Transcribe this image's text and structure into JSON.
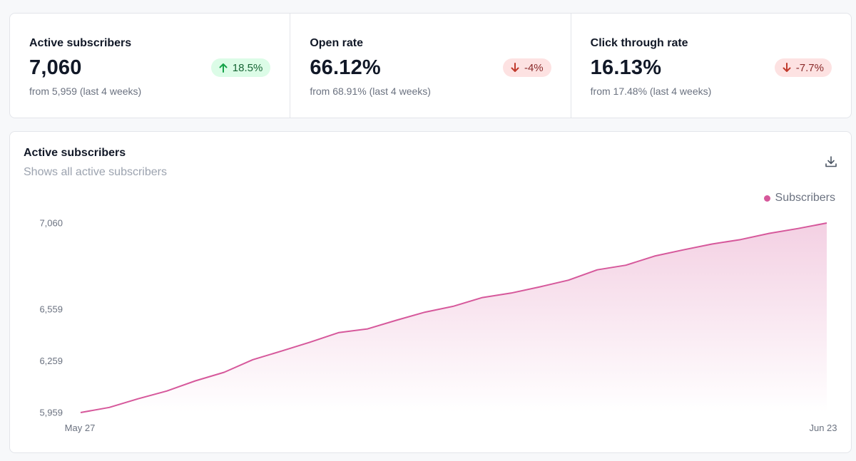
{
  "stats": [
    {
      "label": "Active subscribers",
      "value": "7,060",
      "badge": "18.5%",
      "trend": "up",
      "sub": "from 5,959 (last 4 weeks)"
    },
    {
      "label": "Open rate",
      "value": "66.12%",
      "badge": "-4%",
      "trend": "down",
      "sub": "from 68.91% (last 4 weeks)"
    },
    {
      "label": "Click through rate",
      "value": "16.13%",
      "badge": "-7.7%",
      "trend": "down",
      "sub": "from 17.48% (last 4 weeks)"
    }
  ],
  "chart_card": {
    "title": "Active subscribers",
    "subtitle": "Shows all active subscribers",
    "download_icon": "download-icon"
  },
  "colors": {
    "accent": "#d6589b",
    "up": "#16a34a",
    "down": "#c0392b"
  },
  "chart_data": {
    "type": "area",
    "legend": [
      "Subscribers"
    ],
    "legend_position": "top-right",
    "x_tick_labels": [
      "May 27",
      "Jun 23"
    ],
    "y_tick_labels": [
      "5,959",
      "6,259",
      "6,559",
      "7,060"
    ],
    "ylim": [
      5959,
      7060
    ],
    "grid": false,
    "series": [
      {
        "name": "Subscribers",
        "values": [
          5959,
          5989,
          6039,
          6084,
          6143,
          6193,
          6266,
          6316,
          6368,
          6424,
          6445,
          6495,
          6542,
          6577,
          6627,
          6653,
          6689,
          6728,
          6788,
          6815,
          6868,
          6904,
          6938,
          6964,
          7000,
          7028,
          7060
        ]
      }
    ]
  }
}
